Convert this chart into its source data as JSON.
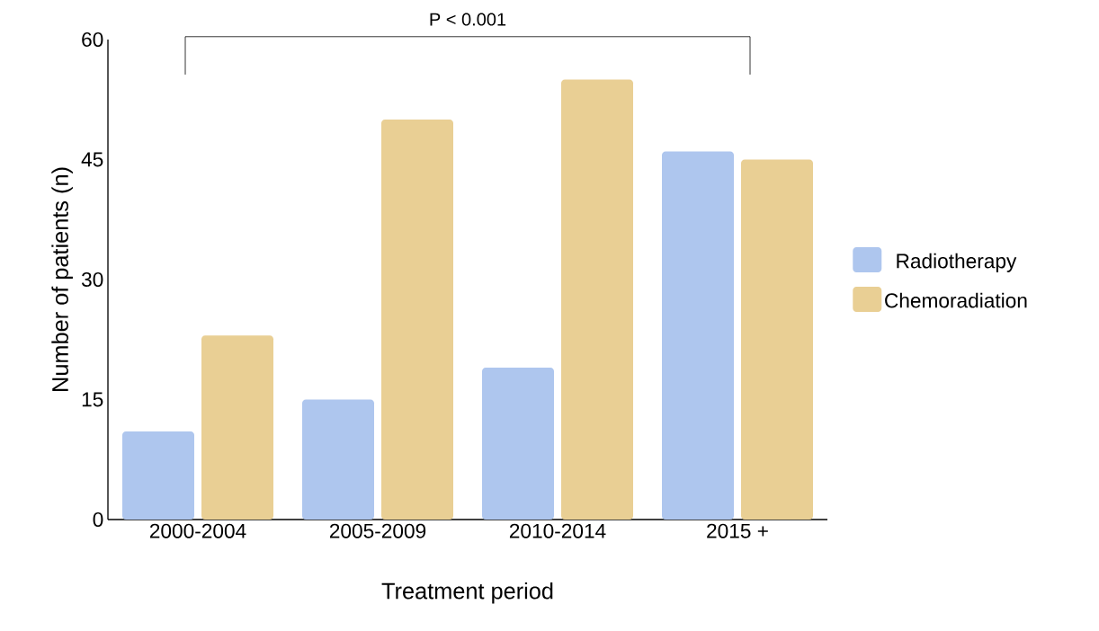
{
  "chart_data": {
    "type": "bar",
    "xlabel": "Treatment period",
    "ylabel": "Number of patients (n)",
    "categories": [
      "2000-2004",
      "2005-2009",
      "2010-2014",
      "2015 +"
    ],
    "series": [
      {
        "name": "Radiotherapy",
        "color": "#aec6ee",
        "values": [
          11,
          15,
          19,
          46
        ]
      },
      {
        "name": "Chemoradiation",
        "color": "#e9cf94",
        "values": [
          23,
          50,
          55,
          45
        ]
      }
    ],
    "ylim": [
      0,
      60
    ],
    "yticks": [
      0,
      15,
      30,
      45,
      60
    ],
    "grid": false,
    "legend": "right",
    "annotations": [
      "P < 0.001"
    ]
  }
}
